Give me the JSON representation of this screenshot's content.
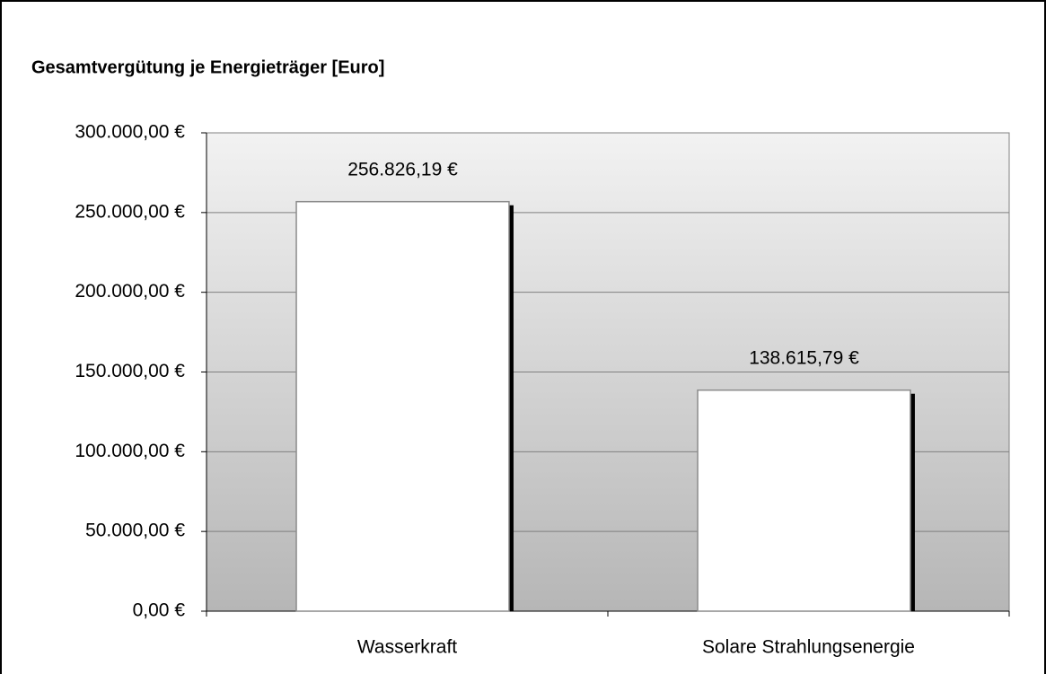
{
  "chart_data": {
    "type": "bar",
    "title": "Gesamtvergütung je Energieträger [Euro]",
    "categories": [
      "Wasserkraft",
      "Solare Strahlungsenergie"
    ],
    "values": [
      256826.19,
      138615.79
    ],
    "value_labels": [
      "256.826,19 €",
      "138.615,79 €"
    ],
    "color": "#ffffff",
    "ylim": [
      0,
      300000
    ],
    "yticks": [
      {
        "value": 0,
        "label": "0,00 €"
      },
      {
        "value": 50000,
        "label": "50.000,00 €"
      },
      {
        "value": 100000,
        "label": "100.000,00 €"
      },
      {
        "value": 150000,
        "label": "150.000,00 €"
      },
      {
        "value": 200000,
        "label": "200.000,00 €"
      },
      {
        "value": 250000,
        "label": "250.000,00 €"
      },
      {
        "value": 300000,
        "label": "300.000,00 €"
      }
    ],
    "grid": true
  }
}
